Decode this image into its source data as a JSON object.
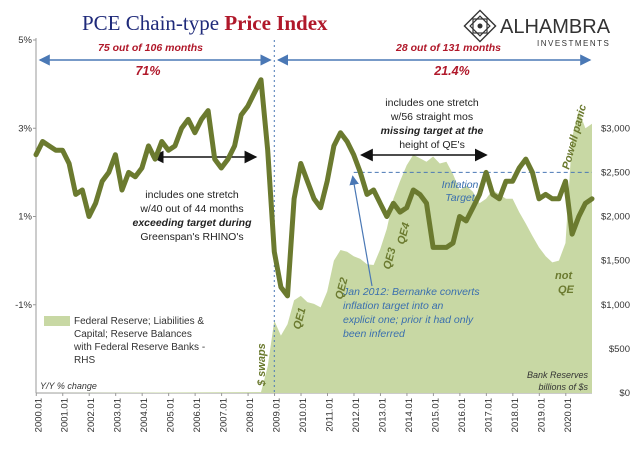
{
  "title": {
    "part1": "PCE Chain-type ",
    "part2": "Price Index"
  },
  "logo": {
    "name": "ALHAMBRA",
    "sub": "INVESTMENTS"
  },
  "period_labels": {
    "left_count": "75 out of 106 months",
    "left_pct": "71%",
    "right_count": "28 out of 131 months",
    "right_pct": "21.4%"
  },
  "annotations": {
    "greenspan": [
      "includes one stretch",
      "w/40 out of 44 months",
      "exceeding target during",
      "Greenspan's RHINO's"
    ],
    "qe_stretch": [
      "includes one stretch",
      "w/56 straight mos",
      "missing target at the",
      "height of QE's"
    ],
    "bernanke": [
      "Jan 2012: Bernanke converts",
      "inflation target into an",
      "explicit one; prior it had only",
      "been inferred"
    ],
    "inflation_target": [
      "Inflation",
      "Target"
    ],
    "swaps": "$ swaps",
    "qe1": "QE1",
    "qe2": "QE2",
    "qe3": "QE3",
    "qe4": "QE4",
    "not_qe": [
      "not",
      "QE"
    ],
    "powell": "Powell panic",
    "yy": "Y/Y % change",
    "reserves_unit": [
      "Bank Reserves",
      "billions of $s"
    ]
  },
  "legend": {
    "lines": [
      "Federal Reserve; Liabilities &",
      "Capital; Reserve Balances",
      "with Federal Reserve Banks -",
      "RHS"
    ]
  },
  "colors": {
    "pce_line": "#6b7a2f",
    "reserves_area": "#c8d8a4",
    "arrow_blue": "#4a78b5",
    "title_blue": "#1f2a7a",
    "title_red": "#b0182a",
    "target_line": "#4a78b5"
  },
  "chart_data": {
    "type": "line",
    "title": "PCE Chain-type Price Index",
    "ylim": [
      -3,
      5
    ],
    "y2lim": [
      0,
      4000
    ],
    "yticks": [
      "5%",
      "3%",
      "1%",
      "-1%"
    ],
    "y2ticks": [
      "$3,000",
      "$2,500",
      "$2,000",
      "$1,500",
      "$1,000",
      "$500",
      "$0"
    ],
    "x_categories": [
      "2000.01",
      "2001.01",
      "2002.01",
      "2003.01",
      "2004.01",
      "2005.01",
      "2006.01",
      "2007.01",
      "2008.01",
      "2009.01",
      "2010.01",
      "2011.01",
      "2012.01",
      "2013.01",
      "2014.01",
      "2015.01",
      "2016.01",
      "2017.01",
      "2018.01",
      "2019.01",
      "2020.01"
    ],
    "target": 2.0,
    "series": [
      {
        "name": "PCE",
        "x": [
          2000.0,
          2000.25,
          2000.5,
          2000.75,
          2001.0,
          2001.25,
          2001.5,
          2001.75,
          2002.0,
          2002.25,
          2002.5,
          2002.75,
          2003.0,
          2003.25,
          2003.5,
          2003.75,
          2004.0,
          2004.25,
          2004.5,
          2004.75,
          2005.0,
          2005.25,
          2005.5,
          2005.75,
          2006.0,
          2006.25,
          2006.5,
          2006.75,
          2007.0,
          2007.25,
          2007.5,
          2007.75,
          2008.0,
          2008.25,
          2008.5,
          2008.75,
          2009.0,
          2009.25,
          2009.5,
          2009.75,
          2010.0,
          2010.25,
          2010.5,
          2010.75,
          2011.0,
          2011.25,
          2011.5,
          2011.75,
          2012.0,
          2012.25,
          2012.5,
          2012.75,
          2013.0,
          2013.25,
          2013.5,
          2013.75,
          2014.0,
          2014.25,
          2014.5,
          2014.75,
          2015.0,
          2015.25,
          2015.5,
          2015.75,
          2016.0,
          2016.25,
          2016.5,
          2016.75,
          2017.0,
          2017.25,
          2017.5,
          2017.75,
          2018.0,
          2018.25,
          2018.5,
          2018.75,
          2019.0,
          2019.25,
          2019.5,
          2019.75,
          2020.0,
          2020.25,
          2020.5,
          2020.75,
          2021.0
        ],
        "values": [
          2.4,
          2.7,
          2.6,
          2.5,
          2.5,
          2.2,
          1.5,
          1.6,
          1.0,
          1.3,
          1.8,
          2.0,
          2.4,
          1.6,
          2.0,
          1.9,
          2.1,
          2.6,
          2.3,
          2.7,
          2.5,
          2.6,
          3.0,
          3.2,
          2.9,
          3.2,
          3.4,
          2.3,
          2.1,
          2.3,
          2.6,
          3.3,
          3.5,
          3.8,
          4.1,
          2.5,
          0.2,
          -0.6,
          -0.8,
          1.4,
          2.2,
          1.8,
          1.4,
          1.2,
          1.8,
          2.6,
          2.9,
          2.7,
          2.4,
          2.0,
          1.5,
          1.6,
          1.3,
          1.0,
          1.3,
          1.1,
          1.2,
          1.6,
          1.5,
          1.3,
          0.3,
          0.3,
          0.3,
          0.4,
          1.0,
          0.9,
          1.2,
          1.5,
          2.0,
          1.5,
          1.4,
          1.8,
          1.8,
          2.1,
          2.3,
          2.0,
          1.4,
          1.5,
          1.4,
          1.4,
          1.8,
          0.6,
          1.0,
          1.3,
          1.4
        ]
      },
      {
        "name": "Federal Reserve; Liabilities & Capital; Reserve Balances with Federal Reserve Banks - RHS",
        "x": [
          2000.0,
          2008.5,
          2008.75,
          2009.0,
          2009.25,
          2009.5,
          2009.75,
          2010.0,
          2010.25,
          2010.5,
          2010.75,
          2011.0,
          2011.25,
          2011.5,
          2011.75,
          2012.0,
          2012.25,
          2012.5,
          2012.75,
          2013.0,
          2013.25,
          2013.5,
          2013.75,
          2014.0,
          2014.25,
          2014.5,
          2014.75,
          2015.0,
          2015.25,
          2015.5,
          2015.75,
          2016.0,
          2016.25,
          2016.5,
          2016.75,
          2017.0,
          2017.25,
          2017.5,
          2017.75,
          2018.0,
          2018.25,
          2018.5,
          2018.75,
          2019.0,
          2019.25,
          2019.5,
          2019.75,
          2020.0,
          2020.25,
          2020.5,
          2020.75,
          2021.0
        ],
        "values": [
          0,
          10,
          300,
          820,
          650,
          780,
          1050,
          1100,
          1030,
          1010,
          970,
          1150,
          1500,
          1620,
          1600,
          1550,
          1520,
          1460,
          1450,
          1630,
          1860,
          2200,
          2400,
          2580,
          2700,
          2660,
          2620,
          2680,
          2600,
          2620,
          2480,
          2300,
          2350,
          2280,
          2150,
          2200,
          2300,
          2250,
          2200,
          2200,
          2050,
          1920,
          1780,
          1650,
          1550,
          1480,
          1500,
          1700,
          2900,
          3200,
          3000,
          3050
        ]
      }
    ]
  }
}
